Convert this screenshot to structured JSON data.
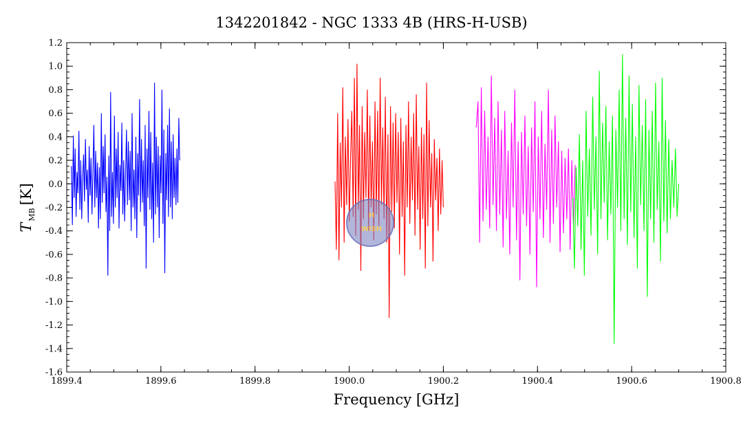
{
  "chart_data": {
    "type": "line",
    "title": "1342201842 - NGC 1333 4B (HRS-H-USB)",
    "xlabel": "Frequency [GHz]",
    "ylabel": {
      "main": "T",
      "subscript": "MB",
      "unit": "[K]"
    },
    "xlim": [
      1899.4,
      1900.8
    ],
    "ylim": [
      -1.6,
      1.2
    ],
    "x_ticks": [
      "1899.4",
      "1899.6",
      "1899.8",
      "1900.0",
      "1900.2",
      "1900.4",
      "1900.6",
      "1900.8"
    ],
    "y_ticks": [
      "-1.6",
      "-1.4",
      "-1.2",
      "-1.0",
      "-0.8",
      "-0.6",
      "-0.4",
      "-0.2",
      "0.0",
      "0.2",
      "0.4",
      "0.6",
      "0.8",
      "1.0",
      "1.2"
    ],
    "grid": false,
    "legend": "none",
    "watermark": {
      "top_text": "H",
      "bottom_text": "WISH"
    },
    "series": [
      {
        "color": "#0000ff",
        "x_start": 1899.41,
        "x_end": 1899.64,
        "values": [
          0.15,
          -0.35,
          0.41,
          -0.12,
          0.3,
          -0.28,
          0.1,
          -0.08,
          0.45,
          -0.22,
          0.2,
          -0.3,
          0.05,
          0.25,
          -0.15,
          0.38,
          -0.05,
          0.12,
          -0.33,
          0.32,
          -0.1,
          0.22,
          -0.26,
          0.08,
          0.5,
          -0.2,
          0.28,
          -0.12,
          0.18,
          -0.38,
          0.14,
          -0.3,
          0.6,
          -0.16,
          0.32,
          -0.08,
          0.42,
          -0.24,
          0.06,
          -0.78,
          0.24,
          -0.4,
          0.78,
          -0.28,
          0.1,
          -0.34,
          0.58,
          -0.2,
          0.3,
          -0.12,
          0.44,
          -0.38,
          0.16,
          -0.06,
          0.52,
          -0.26,
          0.2,
          -0.32,
          0.1,
          0.46,
          -0.18,
          0.36,
          -0.14,
          0.28,
          -0.4,
          0.6,
          -0.2,
          0.12,
          -0.3,
          0.4,
          -0.46,
          0.26,
          -0.1,
          0.72,
          -0.24,
          0.38,
          -0.16,
          0.2,
          -0.36,
          0.5,
          -0.72,
          0.3,
          -0.12,
          0.62,
          -0.22,
          0.44,
          -0.3,
          0.18,
          -0.5,
          0.86,
          -0.26,
          0.4,
          -0.2,
          0.32,
          -0.46,
          0.24,
          -0.08,
          0.8,
          -0.34,
          0.46,
          -0.76,
          0.26,
          -0.14,
          0.5,
          -0.28,
          0.64,
          -0.2,
          0.36,
          -0.3,
          0.42,
          -0.12,
          0.22,
          -0.18,
          0.3,
          -0.16,
          0.56,
          0.2
        ]
      },
      {
        "color": "#ff0000",
        "x_start": 1899.97,
        "x_end": 1900.2,
        "values": [
          0.02,
          -0.56,
          0.6,
          -0.65,
          0.35,
          -0.2,
          0.82,
          -0.5,
          0.4,
          -0.18,
          0.55,
          -0.32,
          0.2,
          0.62,
          -0.28,
          0.9,
          -0.44,
          1.02,
          -0.22,
          0.5,
          -0.74,
          0.66,
          -0.3,
          0.44,
          -0.12,
          0.8,
          -0.4,
          0.58,
          -0.2,
          0.36,
          -0.48,
          0.7,
          -0.26,
          0.62,
          -0.36,
          0.9,
          -0.18,
          0.48,
          -0.3,
          0.74,
          -0.5,
          0.42,
          -1.14,
          0.66,
          -0.24,
          0.52,
          -0.38,
          0.6,
          -0.16,
          0.44,
          -0.6,
          0.56,
          -0.28,
          0.36,
          -0.78,
          0.5,
          -0.2,
          0.7,
          -0.34,
          0.4,
          -0.14,
          0.6,
          -0.44,
          0.76,
          -0.22,
          0.32,
          -0.56,
          0.48,
          -0.3,
          0.42,
          -0.72,
          0.86,
          -0.36,
          0.54,
          -0.2,
          0.26,
          -0.66,
          0.38,
          -0.14,
          0.22,
          -0.4,
          0.3,
          -0.26,
          0.2,
          -0.2
        ]
      },
      {
        "color": "#ff00ff",
        "x_start": 1900.27,
        "x_end": 1900.48,
        "values": [
          0.48,
          0.7,
          -0.5,
          0.82,
          -0.32,
          0.62,
          -0.22,
          0.4,
          -0.38,
          0.92,
          -0.18,
          0.56,
          -0.4,
          0.7,
          -0.26,
          0.46,
          -0.54,
          0.62,
          -0.3,
          0.28,
          -0.6,
          0.52,
          -0.2,
          0.8,
          -0.48,
          0.36,
          -0.82,
          0.44,
          -0.26,
          0.58,
          -0.36,
          0.32,
          -0.6,
          0.48,
          -0.24,
          0.7,
          -0.88,
          0.4,
          -0.3,
          0.62,
          -0.46,
          0.34,
          -0.22,
          0.8,
          -0.5,
          0.46,
          -0.34,
          0.58,
          -0.2,
          0.36,
          -0.58,
          0.28,
          -0.42,
          0.22,
          -0.3,
          0.3,
          -0.56,
          0.2,
          -0.36,
          0.16
        ]
      },
      {
        "color": "#00ff00",
        "x_start": 1900.475,
        "x_end": 1900.7,
        "values": [
          -0.12,
          -0.72,
          0.14,
          -0.36,
          0.42,
          -0.56,
          0.2,
          -0.78,
          0.62,
          -0.28,
          0.3,
          -0.44,
          0.74,
          -0.22,
          0.4,
          -0.6,
          0.96,
          -0.3,
          0.52,
          -0.16,
          0.66,
          -0.48,
          0.36,
          -0.26,
          0.58,
          -1.36,
          0.46,
          -0.2,
          0.8,
          -0.4,
          1.1,
          -0.3,
          0.56,
          -0.52,
          0.92,
          -0.24,
          0.68,
          -0.46,
          0.4,
          -0.72,
          0.84,
          -0.18,
          0.5,
          -0.4,
          0.72,
          -0.96,
          0.46,
          -0.3,
          0.62,
          -0.5,
          0.86,
          -0.22,
          0.36,
          -0.66,
          0.9,
          -0.32,
          0.54,
          -0.42,
          0.38,
          -0.3,
          0.2,
          -0.2,
          0.3,
          -0.28,
          0.0
        ]
      }
    ]
  }
}
